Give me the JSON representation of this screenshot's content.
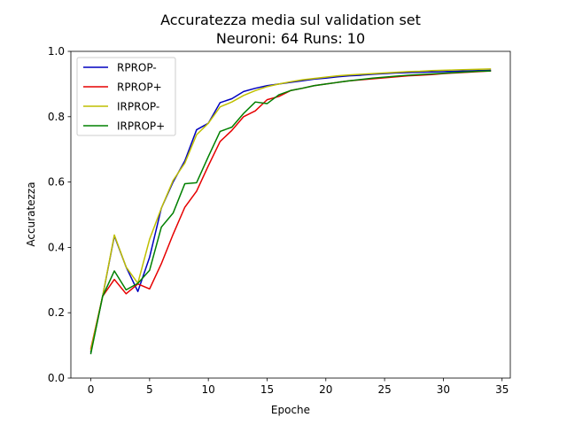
{
  "chart_data": {
    "type": "line",
    "title": "Accuratezza media sul validation set",
    "subtitle": "Neuroni: 64 Runs: 10",
    "xlabel": "Epoche",
    "ylabel": "Accuratezza",
    "xlim": [
      -1.7,
      35.7
    ],
    "ylim": [
      0.0,
      1.0
    ],
    "xticks": [
      0,
      5,
      10,
      15,
      20,
      25,
      30,
      35
    ],
    "yticks": [
      0.0,
      0.2,
      0.4,
      0.6,
      0.8,
      1.0
    ],
    "xtick_labels": [
      "0",
      "5",
      "10",
      "15",
      "20",
      "25",
      "30",
      "35"
    ],
    "ytick_labels": [
      "0.0",
      "0.2",
      "0.4",
      "0.6",
      "0.8",
      "1.0"
    ],
    "grid": false,
    "legend_position": "top-left",
    "x": [
      0,
      1,
      2,
      3,
      4,
      5,
      6,
      7,
      8,
      9,
      10,
      11,
      12,
      13,
      14,
      15,
      16,
      17,
      18,
      19,
      20,
      21,
      22,
      23,
      24,
      25,
      26,
      27,
      28,
      29,
      30,
      31,
      32,
      33,
      34
    ],
    "series": [
      {
        "name": "RPROP-",
        "color": "#0000bf",
        "values": [
          0.08,
          0.25,
          0.435,
          0.34,
          0.265,
          0.37,
          0.52,
          0.6,
          0.665,
          0.76,
          0.78,
          0.843,
          0.855,
          0.877,
          0.887,
          0.895,
          0.9,
          0.905,
          0.91,
          0.915,
          0.918,
          0.922,
          0.925,
          0.927,
          0.93,
          0.932,
          0.934,
          0.935,
          0.936,
          0.937,
          0.938,
          0.939,
          0.94,
          0.941,
          0.942
        ]
      },
      {
        "name": "RPROP+",
        "color": "#e60000",
        "values": [
          0.09,
          0.25,
          0.302,
          0.258,
          0.288,
          0.273,
          0.35,
          0.44,
          0.523,
          0.572,
          0.65,
          0.724,
          0.758,
          0.8,
          0.818,
          0.852,
          0.862,
          0.88,
          0.887,
          0.895,
          0.9,
          0.905,
          0.91,
          0.913,
          0.916,
          0.919,
          0.922,
          0.925,
          0.927,
          0.929,
          0.932,
          0.934,
          0.936,
          0.938,
          0.94
        ]
      },
      {
        "name": "IRPROP-",
        "color": "#bfbf00",
        "values": [
          0.085,
          0.25,
          0.438,
          0.34,
          0.29,
          0.425,
          0.52,
          0.605,
          0.658,
          0.745,
          0.78,
          0.83,
          0.845,
          0.865,
          0.88,
          0.892,
          0.9,
          0.907,
          0.913,
          0.917,
          0.921,
          0.925,
          0.928,
          0.93,
          0.932,
          0.934,
          0.936,
          0.938,
          0.939,
          0.941,
          0.942,
          0.943,
          0.944,
          0.945,
          0.946
        ]
      },
      {
        "name": "IRPROP+",
        "color": "#008000",
        "values": [
          0.075,
          0.25,
          0.328,
          0.27,
          0.29,
          0.33,
          0.462,
          0.505,
          0.595,
          0.598,
          0.678,
          0.755,
          0.768,
          0.81,
          0.845,
          0.84,
          0.867,
          0.88,
          0.887,
          0.895,
          0.9,
          0.905,
          0.91,
          0.914,
          0.918,
          0.921,
          0.924,
          0.927,
          0.929,
          0.931,
          0.933,
          0.935,
          0.937,
          0.939,
          0.94
        ]
      }
    ]
  }
}
